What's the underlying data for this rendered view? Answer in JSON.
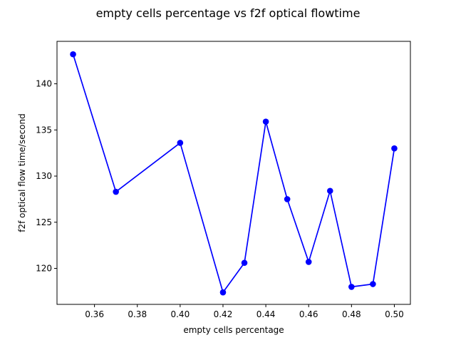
{
  "chart_data": {
    "type": "line",
    "title": "empty cells percentage vs f2f optical flowtime",
    "xlabel": "empty cells percentage",
    "ylabel": "f2f optical flow time/second",
    "xlim": [
      0.3425,
      0.5075
    ],
    "ylim": [
      116.1,
      144.6
    ],
    "x_ticks": [
      0.36,
      0.38,
      0.4,
      0.42,
      0.44,
      0.46,
      0.48,
      0.5
    ],
    "x_tick_labels": [
      "0.36",
      "0.38",
      "0.40",
      "0.42",
      "0.44",
      "0.46",
      "0.48",
      "0.50"
    ],
    "y_ticks": [
      120,
      125,
      130,
      135,
      140
    ],
    "y_tick_labels": [
      "120",
      "125",
      "130",
      "135",
      "140"
    ],
    "grid": false,
    "legend": "none",
    "series": [
      {
        "color": "#0000ff",
        "marker": "circle",
        "x": [
          0.35,
          0.37,
          0.4,
          0.42,
          0.43,
          0.44,
          0.45,
          0.46,
          0.47,
          0.48,
          0.49,
          0.5
        ],
        "y": [
          143.2,
          128.3,
          133.6,
          117.4,
          120.6,
          135.9,
          127.5,
          120.7,
          128.4,
          118.0,
          118.3,
          133.0
        ]
      }
    ]
  }
}
